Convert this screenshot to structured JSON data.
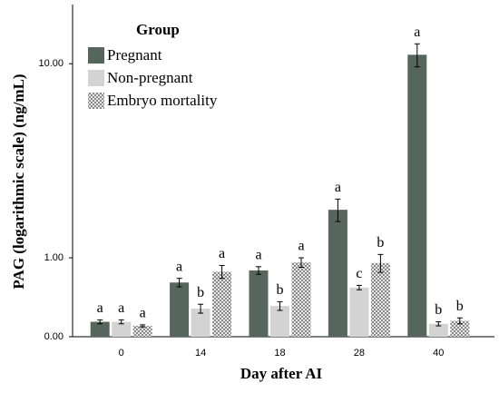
{
  "chart_data": {
    "type": "bar",
    "y_label": "PAG (logarithmic scale) (ng/mL)",
    "x_label": "Day after AI",
    "legend_title": "Group",
    "legend_position": "upper left",
    "yscale": "log1p",
    "categories": [
      "0",
      "14",
      "18",
      "28",
      "40"
    ],
    "series": [
      {
        "name": "Pregnant",
        "color": "#56655e",
        "values": [
          0.14,
          0.61,
          0.79,
          2.05,
          10.9
        ],
        "errors": [
          0.02,
          0.06,
          0.06,
          0.3,
          1.2
        ],
        "labels": [
          "a",
          "a",
          "a",
          "a",
          "a"
        ]
      },
      {
        "name": "Non-pregnant",
        "color": "#d3d3d3",
        "values": [
          0.14,
          0.28,
          0.31,
          0.54,
          0.12
        ],
        "errors": [
          0.02,
          0.05,
          0.05,
          0.03,
          0.02
        ],
        "labels": [
          "a",
          "b",
          "b",
          "c",
          "b"
        ]
      },
      {
        "name": "Embryo mortality",
        "color": "pattern",
        "values": [
          0.1,
          0.77,
          0.92,
          0.91,
          0.15
        ],
        "errors": [
          0.01,
          0.1,
          0.08,
          0.15,
          0.03
        ],
        "labels": [
          "a",
          "a",
          "a",
          "b",
          "b"
        ]
      }
    ],
    "ylim": [
      0,
      17.5
    ],
    "yticks": [
      {
        "value": 0,
        "label": "0.00"
      },
      {
        "value": 1,
        "label": "1.00"
      },
      {
        "value": 10,
        "label": "10.00"
      }
    ]
  }
}
